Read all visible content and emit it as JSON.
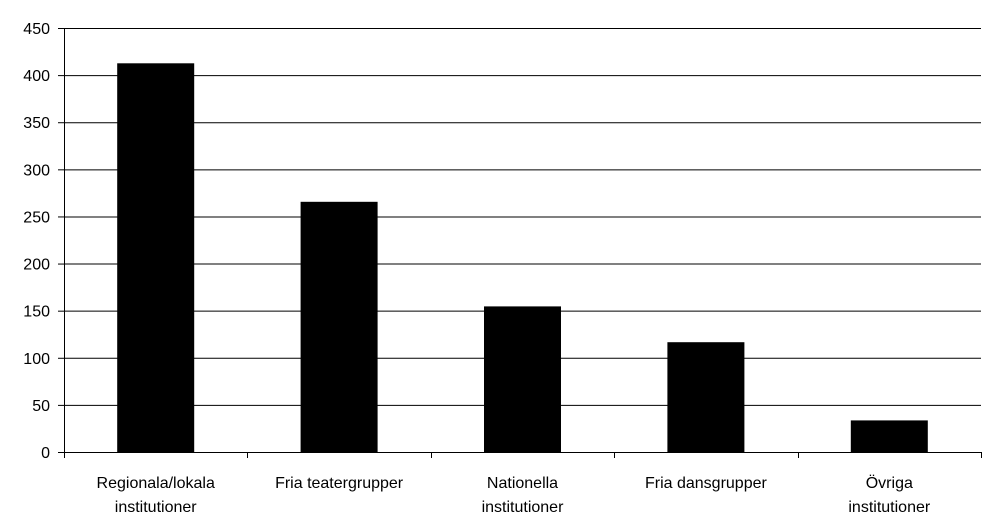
{
  "chart_data": {
    "type": "bar",
    "title": "",
    "xlabel": "",
    "ylabel": "",
    "ylim": [
      0,
      450
    ],
    "y_ticks": [
      0,
      50,
      100,
      150,
      200,
      250,
      300,
      350,
      400,
      450
    ],
    "grid": true,
    "legend": "none",
    "bar_color": "#000000",
    "categories": [
      [
        "Regionala/lokala",
        "institutioner"
      ],
      [
        "Fria teatergrupper"
      ],
      [
        "Nationella",
        "institutioner"
      ],
      [
        "Fria dansgrupper"
      ],
      [
        "Övriga",
        "institutioner"
      ]
    ],
    "values": [
      412,
      265,
      154,
      116,
      33
    ]
  }
}
